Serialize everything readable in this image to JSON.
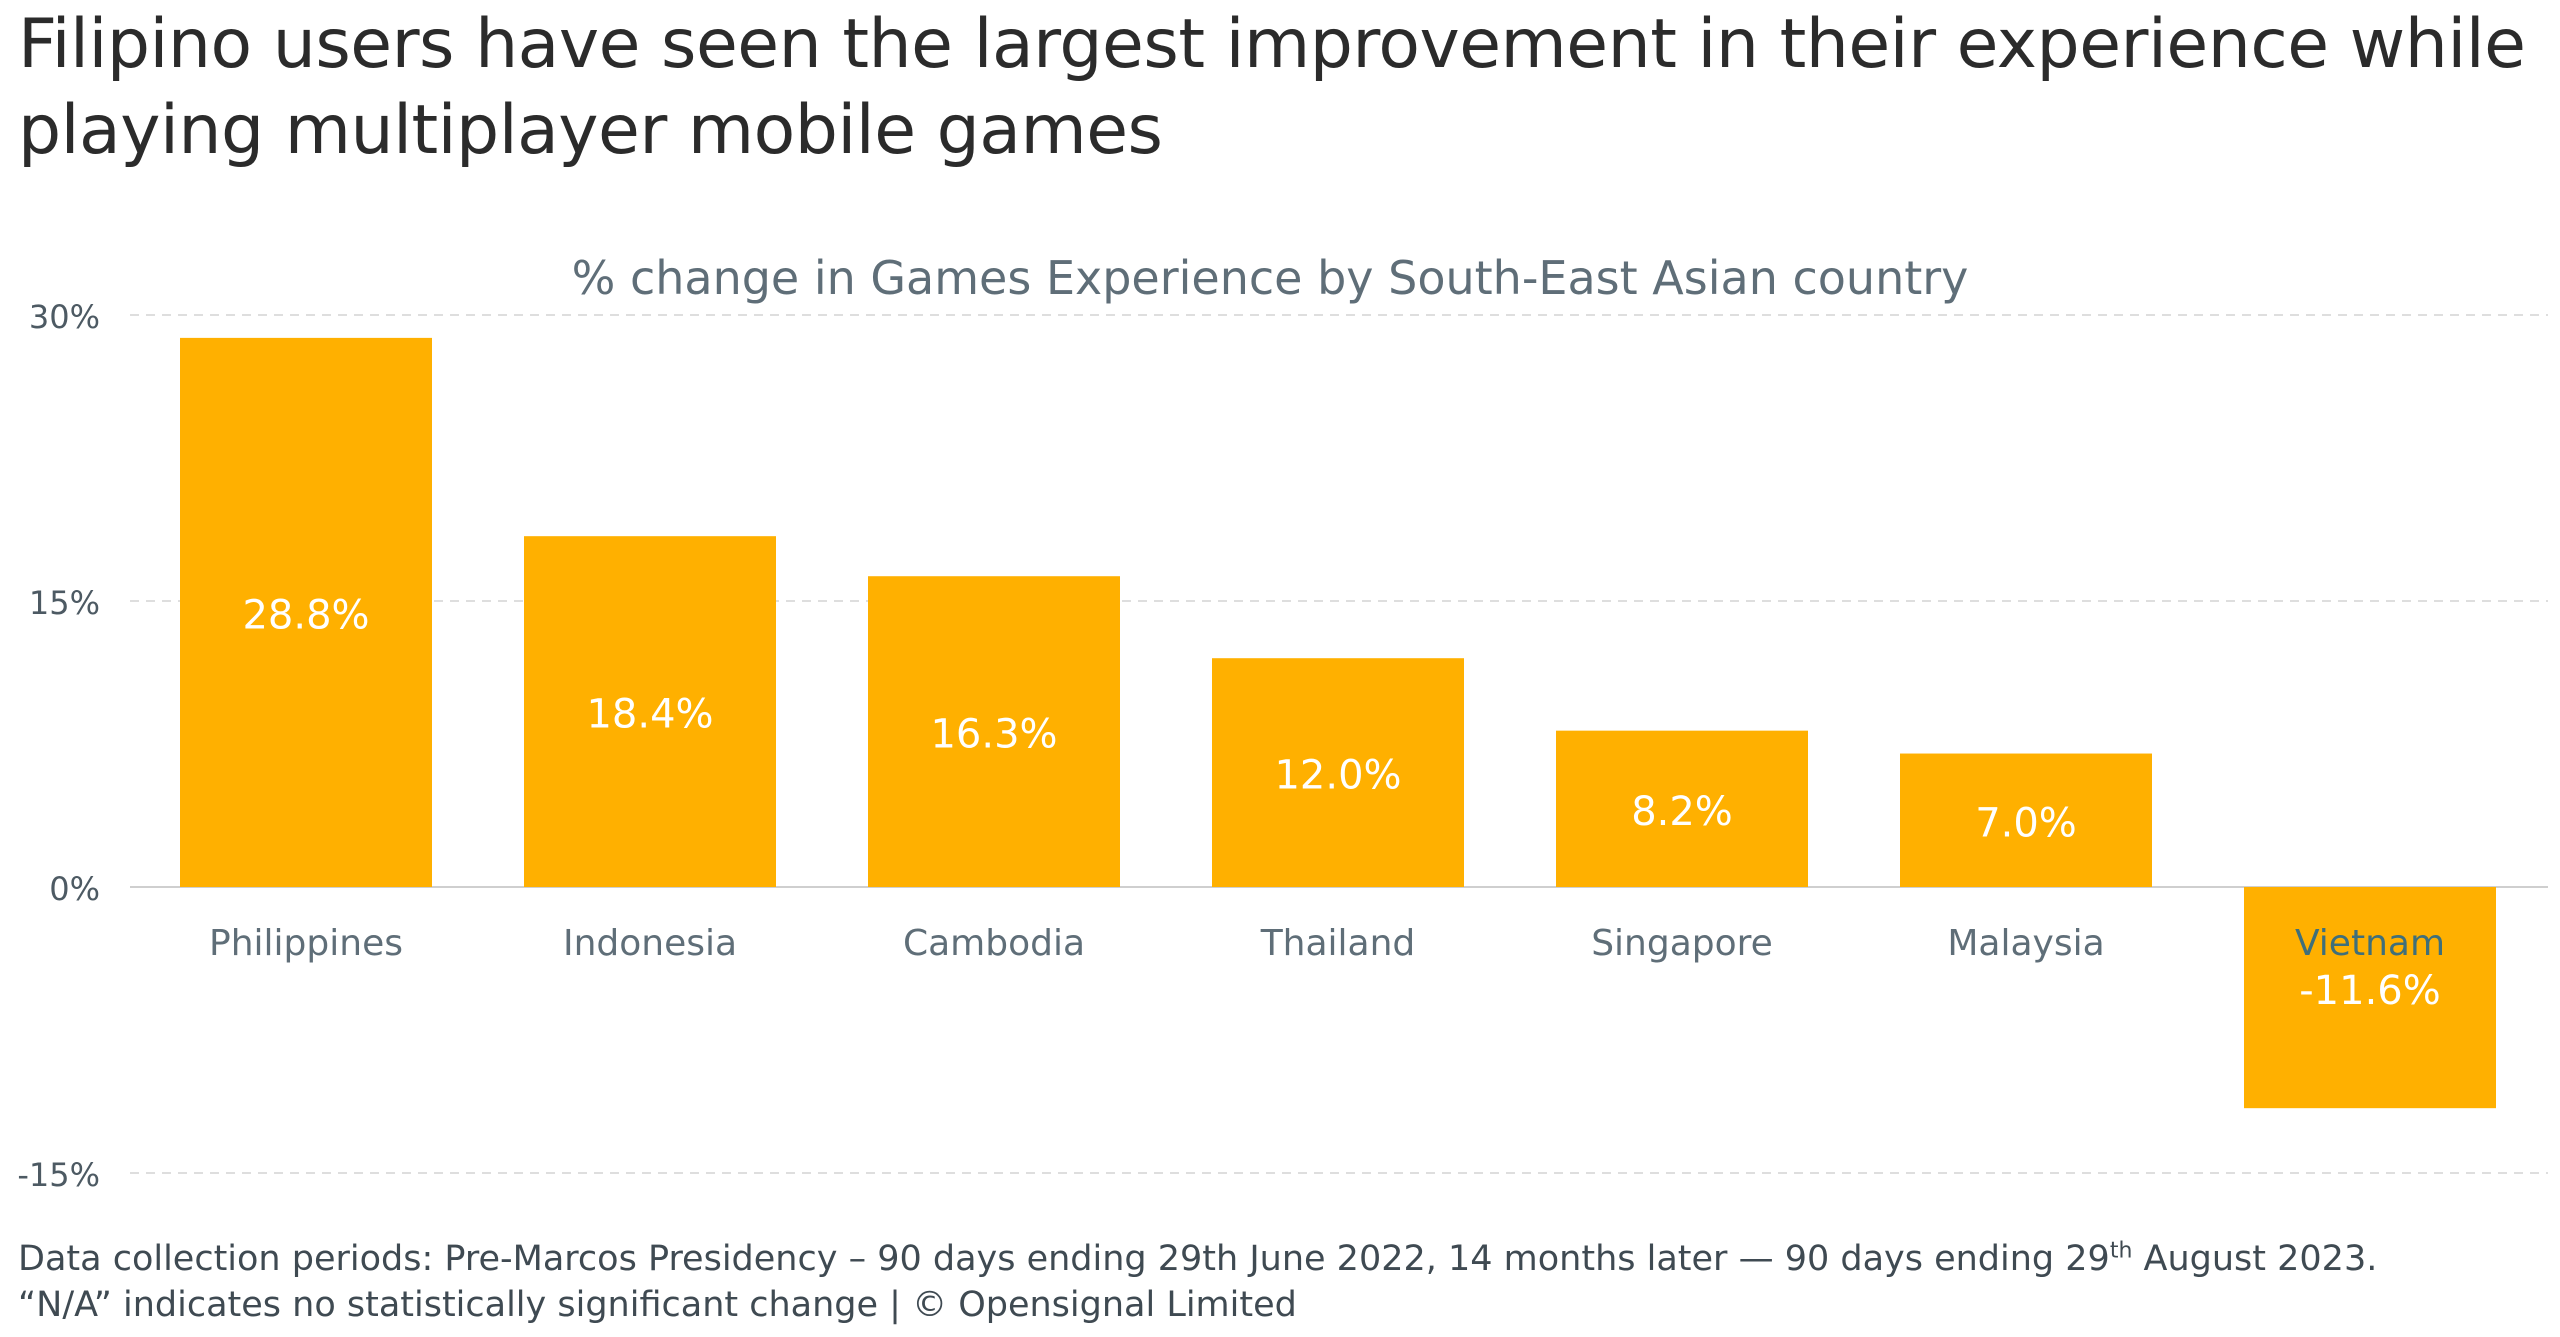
{
  "headline": "Filipino users have seen the largest improvement in their experience while playing multiplayer mobile games",
  "footer": {
    "line1_a": "Data collection periods: Pre-Marcos Presidency – 90 days ending 29th June 2022, 14 months later — 90 days ending 29",
    "line1_sup": "th",
    "line1_b": " August 2023.",
    "line2": "“N/A” indicates no statistically significant change | © Opensignal Limited"
  },
  "colors": {
    "bar": "#ffb000",
    "bar_label": "#ffffff",
    "category_label": "#5f6e78",
    "negative_category_label": "#3f6f7a",
    "grid": "#d4d4d4",
    "axis_line": "#cfcfcf",
    "tick": "#4d5a63",
    "chart_title": "#5f6e78"
  },
  "chart_data": {
    "type": "bar",
    "title": "% change in Games Experience by South-East Asian country",
    "categories": [
      "Philippines",
      "Indonesia",
      "Cambodia",
      "Thailand",
      "Singapore",
      "Malaysia",
      "Vietnam"
    ],
    "values": [
      28.8,
      18.4,
      16.3,
      12.0,
      8.2,
      7.0,
      -11.6
    ],
    "value_labels": [
      "28.8%",
      "18.4%",
      "16.3%",
      "12.0%",
      "8.2%",
      "7.0%",
      "-11.6%"
    ],
    "ylim": [
      -15,
      30
    ],
    "yticks": [
      30,
      15,
      0,
      -15
    ],
    "ytick_labels": [
      "30%",
      "15%",
      "0%",
      "-15%"
    ],
    "grid": true,
    "legend": "none",
    "xlabel": "",
    "ylabel": ""
  }
}
